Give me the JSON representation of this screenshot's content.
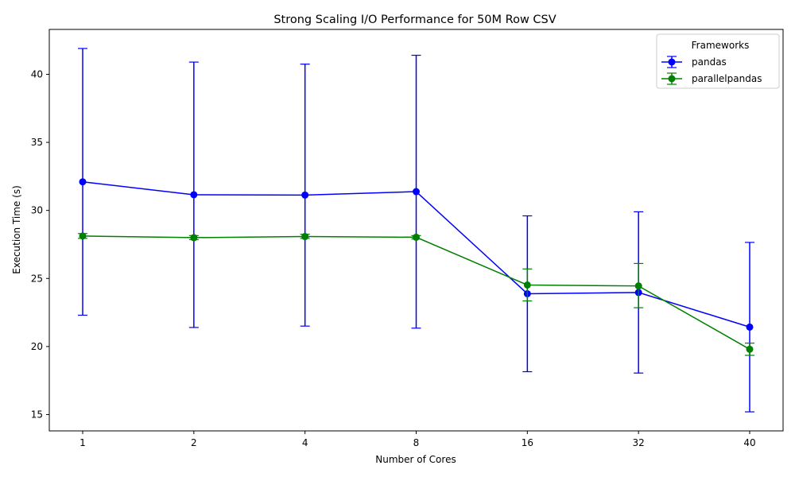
{
  "chart_data": {
    "type": "line",
    "title": "Strong Scaling I/O Performance for 50M Row CSV",
    "xlabel": "Number of Cores",
    "ylabel": "Execution Time (s)",
    "categories": [
      "1",
      "2",
      "4",
      "8",
      "16",
      "32",
      "40"
    ],
    "ylim": [
      13.8,
      43.3
    ],
    "yticks": [
      15,
      20,
      25,
      30,
      35,
      40
    ],
    "grid": false,
    "legend": {
      "title": "Frameworks",
      "placement": "top-right"
    },
    "series": [
      {
        "name": "pandas",
        "color": "#0000ff",
        "values": [
          32.1,
          31.15,
          31.13,
          31.38,
          23.88,
          23.97,
          21.43
        ],
        "err_low": [
          22.3,
          21.4,
          21.5,
          21.35,
          18.15,
          18.05,
          15.2
        ],
        "err_high": [
          41.9,
          40.9,
          40.75,
          41.4,
          29.6,
          29.9,
          27.65
        ]
      },
      {
        "name": "parallelpandas",
        "color": "#008000",
        "values": [
          28.12,
          28.0,
          28.08,
          28.03,
          24.52,
          24.45,
          19.8
        ],
        "err_low": [
          27.95,
          27.85,
          27.95,
          27.9,
          23.35,
          22.85,
          19.35
        ],
        "err_high": [
          28.3,
          28.15,
          28.25,
          28.15,
          25.7,
          26.1,
          20.25
        ]
      }
    ]
  }
}
